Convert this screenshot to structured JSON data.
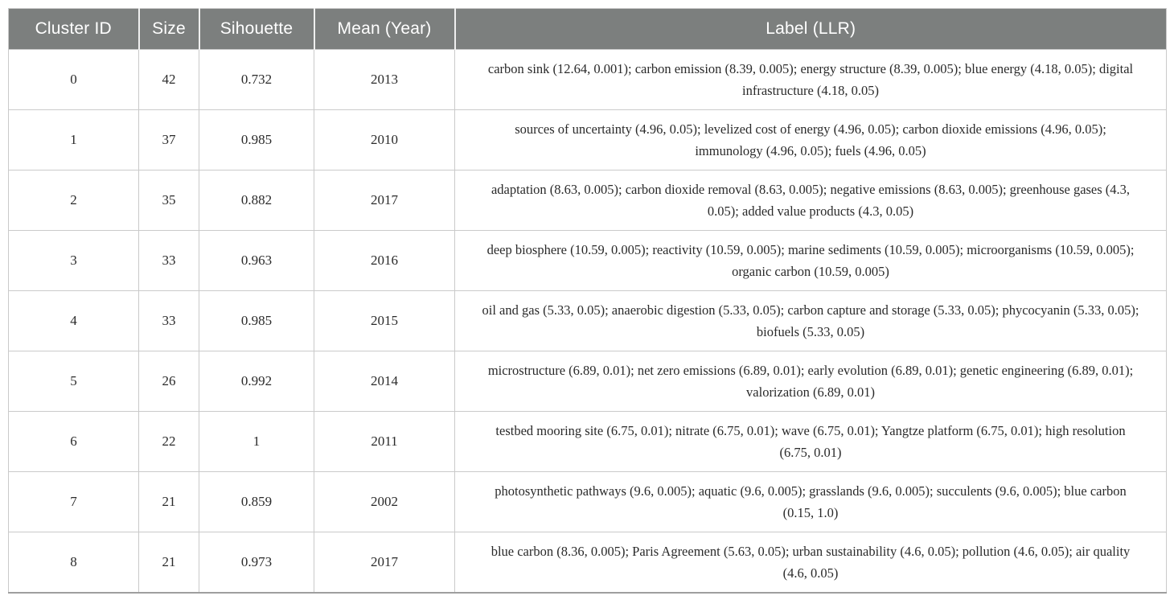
{
  "table": {
    "columns": [
      {
        "key": "cluster_id",
        "label": "Cluster ID"
      },
      {
        "key": "size",
        "label": "Size"
      },
      {
        "key": "silhouette",
        "label": "Sihouette"
      },
      {
        "key": "mean_year",
        "label": "Mean (Year)"
      },
      {
        "key": "label",
        "label": "Label (LLR)"
      }
    ],
    "rows": [
      {
        "cluster_id": "0",
        "size": "42",
        "silhouette": "0.732",
        "mean_year": "2013",
        "label": "carbon sink (12.64, 0.001); carbon emission (8.39, 0.005); energy structure (8.39, 0.005); blue energy (4.18, 0.05); digital infrastructure (4.18, 0.05)"
      },
      {
        "cluster_id": "1",
        "size": "37",
        "silhouette": "0.985",
        "mean_year": "2010",
        "label": "sources of uncertainty (4.96, 0.05); levelized cost of energy (4.96, 0.05); carbon dioxide emissions (4.96, 0.05); immunology (4.96, 0.05); fuels (4.96, 0.05)"
      },
      {
        "cluster_id": "2",
        "size": "35",
        "silhouette": "0.882",
        "mean_year": "2017",
        "label": "adaptation (8.63, 0.005); carbon dioxide removal (8.63, 0.005); negative emissions (8.63, 0.005); greenhouse gases (4.3, 0.05); added value products (4.3, 0.05)"
      },
      {
        "cluster_id": "3",
        "size": "33",
        "silhouette": "0.963",
        "mean_year": "2016",
        "label": "deep biosphere (10.59, 0.005); reactivity (10.59, 0.005); marine sediments (10.59, 0.005); microorganisms (10.59, 0.005); organic carbon (10.59, 0.005)"
      },
      {
        "cluster_id": "4",
        "size": "33",
        "silhouette": "0.985",
        "mean_year": "2015",
        "label": "oil and gas (5.33, 0.05); anaerobic digestion (5.33, 0.05); carbon capture and storage (5.33, 0.05); phycocyanin (5.33, 0.05); biofuels (5.33, 0.05)"
      },
      {
        "cluster_id": "5",
        "size": "26",
        "silhouette": "0.992",
        "mean_year": "2014",
        "label": "microstructure (6.89, 0.01); net zero emissions (6.89, 0.01); early evolution (6.89, 0.01); genetic engineering (6.89, 0.01); valorization (6.89, 0.01)"
      },
      {
        "cluster_id": "6",
        "size": "22",
        "silhouette": "1",
        "mean_year": "2011",
        "label": "testbed mooring site (6.75, 0.01); nitrate (6.75, 0.01); wave (6.75, 0.01); Yangtze platform (6.75, 0.01); high resolution (6.75, 0.01)"
      },
      {
        "cluster_id": "7",
        "size": "21",
        "silhouette": "0.859",
        "mean_year": "2002",
        "label": "photosynthetic pathways (9.6, 0.005); aquatic (9.6, 0.005); grasslands (9.6, 0.005); succulents (9.6, 0.005); blue carbon (0.15, 1.0)"
      },
      {
        "cluster_id": "8",
        "size": "21",
        "silhouette": "0.973",
        "mean_year": "2017",
        "label": "blue carbon (8.36, 0.005); Paris Agreement (5.63, 0.05); urban sustainability (4.6, 0.05); pollution (4.6, 0.05); air quality (4.6, 0.05)"
      }
    ]
  },
  "colors": {
    "header_bg": "#7c7f7e",
    "header_text": "#ffffff",
    "cell_border": "#cacaca",
    "bottom_border": "#9e9e9e",
    "body_text": "#2a2a2a"
  }
}
